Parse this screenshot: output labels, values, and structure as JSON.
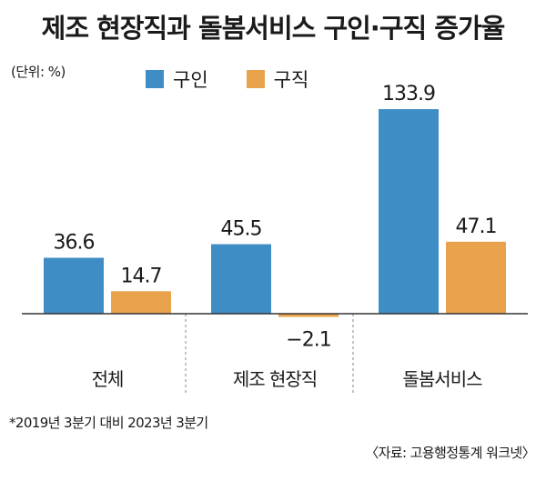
{
  "title": "제조 현장직과 돌봄서비스 구인·구직 증가율",
  "unit_label": "(단위: %)",
  "footnote": "*2019년 3분기 대비 2023년 3분기",
  "source": "〈자료: 고용행정통계 워크넷〉",
  "colors": {
    "series1": "#3f8dc5",
    "series2": "#e9a34d",
    "axis": "#333333",
    "divider": "#888888"
  },
  "chart_data": {
    "type": "bar",
    "title": "제조 현장직과 돌봄서비스 구인·구직 증가율",
    "ylabel": "",
    "xlabel": "",
    "categories": [
      "전체",
      "제조 현장직",
      "돌봄서비스"
    ],
    "series": [
      {
        "name": "구인",
        "values": [
          36.6,
          45.5,
          133.9
        ],
        "labels": [
          "36.6",
          "45.5",
          "133.9"
        ]
      },
      {
        "name": "구직",
        "values": [
          14.7,
          -2.1,
          47.1
        ],
        "labels": [
          "14.7",
          "−2.1",
          "47.1"
        ]
      }
    ],
    "ylim": [
      -5,
      140
    ],
    "legend": "top",
    "grid": false
  }
}
